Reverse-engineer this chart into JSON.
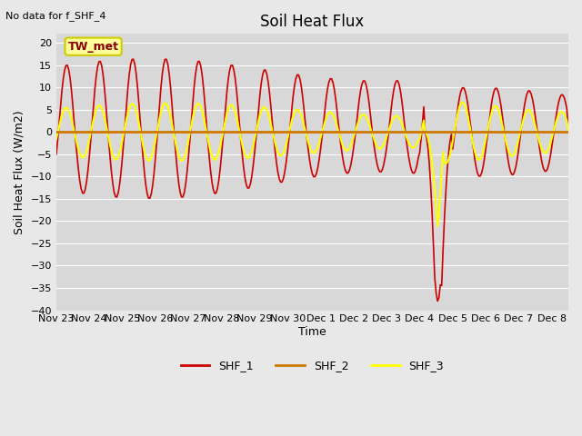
{
  "title": "Soil Heat Flux",
  "note": "No data for f_SHF_4",
  "ylabel": "Soil Heat Flux (W/m2)",
  "xlabel": "Time",
  "ylim": [
    -40,
    22
  ],
  "yticks": [
    -40,
    -35,
    -30,
    -25,
    -20,
    -15,
    -10,
    -5,
    0,
    5,
    10,
    15,
    20
  ],
  "xtick_labels": [
    "Nov 23",
    "Nov 24",
    "Nov 25",
    "Nov 26",
    "Nov 27",
    "Nov 28",
    "Nov 29",
    "Nov 30",
    "Dec 1",
    "Dec 2",
    "Dec 3",
    "Dec 4",
    "Dec 5",
    "Dec 6",
    "Dec 7",
    "Dec 8"
  ],
  "legend_labels": [
    "SHF_1",
    "SHF_2",
    "SHF_3"
  ],
  "shf1_color": "#cc0000",
  "shf2_color": "#cc7700",
  "shf3_color": "#ffff00",
  "fig_bg": "#e8e8e8",
  "plot_bg": "#d8d8d8",
  "grid_color": "#ffffff",
  "tw_met_label": "TW_met",
  "tw_met_fg": "#880000",
  "tw_met_bg": "#ffff99",
  "tw_met_border": "#cccc00",
  "title_fontsize": 12,
  "label_fontsize": 9,
  "tick_fontsize": 8
}
